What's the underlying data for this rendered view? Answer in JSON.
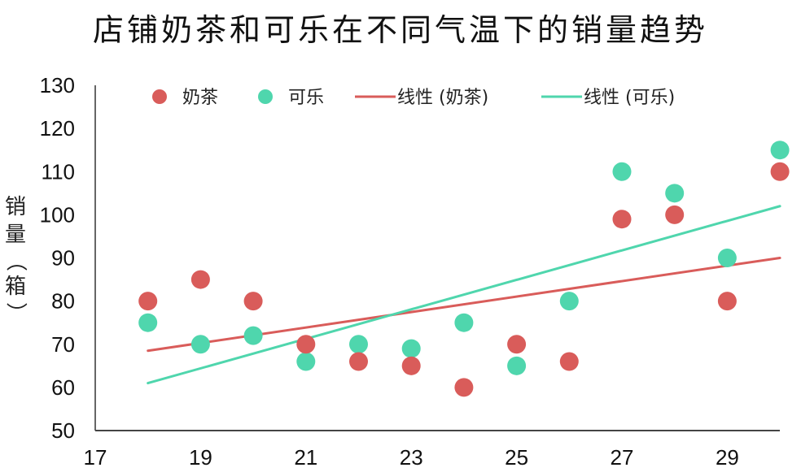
{
  "title": "店铺奶茶和可乐在不同气温下的销量趋势",
  "chart_data": {
    "type": "scatter",
    "title": "店铺奶茶和可乐在不同气温下的销量趋势",
    "xlabel": "",
    "ylabel": "销量（箱）",
    "xlim": [
      17,
      30
    ],
    "ylim": [
      50,
      130
    ],
    "x_ticks": [
      17,
      19,
      21,
      23,
      25,
      27,
      29
    ],
    "y_ticks": [
      50,
      60,
      70,
      80,
      90,
      100,
      110,
      120,
      130
    ],
    "grid": false,
    "legend_position": "top",
    "x": [
      18,
      19,
      20,
      21,
      22,
      23,
      24,
      25,
      26,
      27,
      28,
      29,
      30
    ],
    "series": [
      {
        "name": "奶茶",
        "color": "#d95c5a",
        "values": [
          80,
          85,
          80,
          70,
          66,
          65,
          60,
          70,
          66,
          99,
          100,
          80,
          110
        ]
      },
      {
        "name": "可乐",
        "color": "#4fd6ad",
        "values": [
          75,
          70,
          72,
          66,
          70,
          69,
          75,
          65,
          80,
          110,
          105,
          90,
          115
        ]
      }
    ],
    "trendlines": [
      {
        "name": "线性 (奶茶)",
        "color": "#d95c5a",
        "type": "linear",
        "start": [
          18,
          68.5
        ],
        "end": [
          30,
          90
        ]
      },
      {
        "name": "线性 (可乐)",
        "color": "#4fd6ad",
        "type": "linear",
        "start": [
          18,
          61
        ],
        "end": [
          30,
          102
        ]
      }
    ]
  },
  "legend": {
    "items": [
      {
        "label": "奶茶",
        "kind": "marker",
        "color": "#d95c5a"
      },
      {
        "label": "可乐",
        "kind": "marker",
        "color": "#4fd6ad"
      },
      {
        "label": "线性 (奶茶)",
        "kind": "line",
        "color": "#d95c5a"
      },
      {
        "label": "线性 (可乐)",
        "kind": "line",
        "color": "#4fd6ad"
      }
    ]
  },
  "axes": {
    "ylabel_chars": [
      "销",
      "量",
      "（",
      "箱",
      "）"
    ]
  }
}
